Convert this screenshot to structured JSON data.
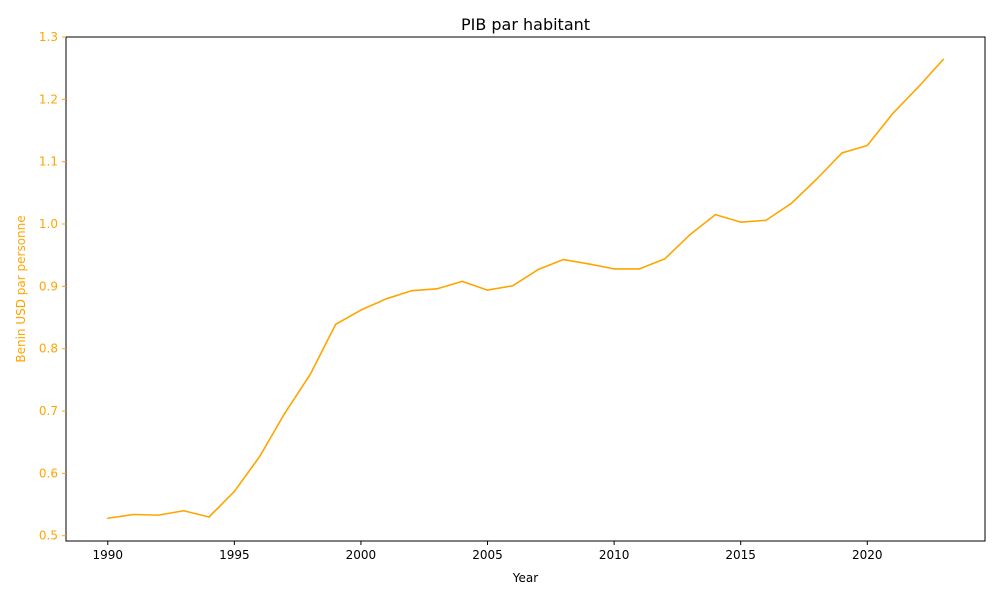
{
  "chart_data": {
    "type": "line",
    "title": "PIB par habitant",
    "xlabel": "Year",
    "ylabel": "Benin USD par personne",
    "xlim": [
      1988.35,
      2024.65
    ],
    "ylim": [
      0.4915,
      1.3
    ],
    "x_ticks": [
      1990,
      1995,
      2000,
      2005,
      2010,
      2015,
      2020
    ],
    "y_ticks": [
      0.5,
      0.6,
      0.7,
      0.8,
      0.9,
      1.0,
      1.1,
      1.2,
      1.3
    ],
    "x_tick_labels": [
      "1990",
      "1995",
      "2000",
      "2005",
      "2010",
      "2015",
      "2020"
    ],
    "y_tick_labels": [
      "0.5",
      "0.6",
      "0.7",
      "0.8",
      "0.9",
      "1.0",
      "1.1",
      "1.2",
      "1.3"
    ],
    "grid": false,
    "colors": {
      "line": "#FFA500",
      "axis": "#000000",
      "ylabel": "#FFA500"
    },
    "series": [
      {
        "x": [
          1990,
          1991,
          1992,
          1993,
          1994,
          1995,
          1996,
          1997,
          1998,
          1999,
          2000,
          2001,
          2002,
          2003,
          2004,
          2005,
          2006,
          2007,
          2008,
          2009,
          2010,
          2011,
          2012,
          2013,
          2014,
          2015,
          2016,
          2017,
          2018,
          2019,
          2020,
          2021,
          2022,
          2023
        ],
        "values": [
          0.528,
          0.534,
          0.533,
          0.54,
          0.53,
          0.571,
          0.627,
          0.697,
          0.759,
          0.839,
          0.862,
          0.88,
          0.893,
          0.896,
          0.908,
          0.894,
          0.901,
          0.927,
          0.943,
          0.936,
          0.928,
          0.928,
          0.944,
          0.983,
          1.015,
          1.003,
          1.006,
          1.033,
          1.072,
          1.114,
          1.126,
          1.177,
          1.219,
          1.264
        ]
      }
    ]
  }
}
